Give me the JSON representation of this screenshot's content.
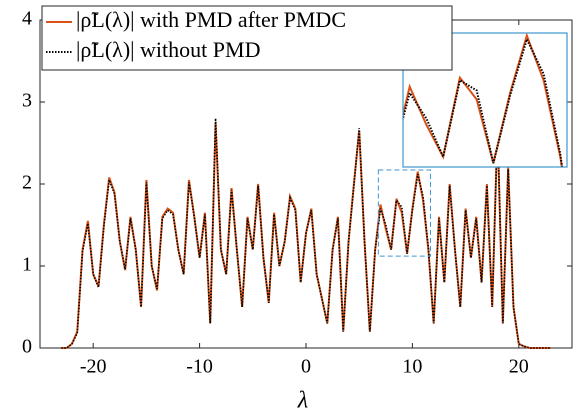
{
  "chart_data": {
    "type": "line",
    "x_label": "λ",
    "x": [
      -23,
      -22.5,
      -22,
      -21.5,
      -21,
      -20.5,
      -20,
      -19.5,
      -19,
      -18.5,
      -18,
      -17.5,
      -17,
      -16.5,
      -16,
      -15.5,
      -15,
      -14.5,
      -14,
      -13.5,
      -13,
      -12.5,
      -12,
      -11.5,
      -11,
      -10.5,
      -10,
      -9.5,
      -9,
      -8.5,
      -8,
      -7.5,
      -7,
      -6.5,
      -6,
      -5.5,
      -5,
      -4.5,
      -4,
      -3.5,
      -3,
      -2.5,
      -2,
      -1.5,
      -1,
      -0.5,
      0,
      0.5,
      1,
      1.5,
      2,
      2.5,
      3,
      3.5,
      4,
      4.5,
      5,
      5.5,
      6,
      6.5,
      7,
      7.5,
      8,
      8.5,
      9,
      9.5,
      10,
      10.5,
      11,
      11.5,
      12,
      12.5,
      13,
      13.5,
      14,
      14.5,
      15,
      15.5,
      16,
      16.5,
      17,
      17.5,
      18,
      18.5,
      19,
      19.5,
      20,
      20.5,
      21,
      22,
      23
    ],
    "series": [
      {
        "name": "|ρ̃L(λ)| with PMD after PMDC",
        "color": "#d95319",
        "style": "solid",
        "values": [
          0,
          0,
          0.05,
          0.2,
          1.2,
          1.55,
          0.9,
          0.75,
          1.5,
          2.08,
          1.9,
          1.3,
          0.95,
          1.6,
          1.2,
          0.5,
          2.05,
          1.0,
          0.7,
          1.6,
          1.7,
          1.65,
          1.2,
          0.9,
          2.05,
          1.6,
          1.1,
          1.65,
          0.3,
          2.75,
          1.2,
          0.9,
          1.95,
          1.2,
          0.5,
          1.6,
          1.2,
          2.0,
          1.1,
          0.55,
          1.65,
          1.0,
          1.3,
          1.85,
          1.7,
          0.8,
          1.4,
          1.7,
          0.9,
          0.6,
          0.3,
          1.2,
          1.6,
          0.2,
          1.3,
          2.0,
          2.65,
          1.3,
          0.2,
          1.2,
          1.75,
          1.45,
          1.2,
          1.82,
          1.65,
          1.15,
          1.7,
          2.15,
          1.8,
          1.2,
          0.3,
          1.6,
          0.8,
          2.0,
          1.2,
          0.5,
          1.7,
          1.1,
          1.6,
          0.8,
          2.0,
          0.5,
          2.7,
          0.3,
          2.2,
          0.5,
          0.05,
          0.02,
          0,
          0,
          0
        ]
      },
      {
        "name": "|ρ̃L(λ)| without PMD",
        "color": "#000000",
        "style": "dotted",
        "values": [
          0,
          0,
          0.05,
          0.18,
          1.18,
          1.52,
          0.9,
          0.74,
          1.48,
          2.05,
          1.88,
          1.3,
          0.96,
          1.58,
          1.2,
          0.5,
          2.02,
          1.0,
          0.72,
          1.58,
          1.68,
          1.63,
          1.2,
          0.9,
          2.02,
          1.6,
          1.1,
          1.63,
          0.3,
          2.8,
          1.2,
          0.9,
          1.93,
          1.2,
          0.5,
          1.58,
          1.2,
          1.98,
          1.1,
          0.55,
          1.63,
          1.0,
          1.3,
          1.83,
          1.68,
          0.8,
          1.4,
          1.68,
          0.9,
          0.6,
          0.3,
          1.2,
          1.58,
          0.2,
          1.3,
          1.98,
          2.68,
          1.3,
          0.2,
          1.2,
          1.7,
          1.5,
          1.2,
          1.8,
          1.72,
          1.15,
          1.68,
          2.12,
          1.85,
          1.22,
          0.3,
          1.58,
          0.8,
          1.98,
          1.2,
          0.5,
          1.68,
          1.1,
          1.58,
          0.8,
          1.98,
          0.5,
          2.72,
          0.3,
          2.18,
          0.5,
          0.05,
          0.02,
          0,
          0,
          0
        ]
      }
    ],
    "xlim": [
      -25,
      25
    ],
    "ylim": [
      0,
      4
    ],
    "xticks": [
      -20,
      -10,
      0,
      10,
      20
    ],
    "yticks": [
      0,
      1,
      2,
      3,
      4
    ],
    "legend": "upper left",
    "inset": {
      "xlim": [
        6.8,
        11.7
      ],
      "ylim": [
        1.12,
        2.17
      ],
      "color": "#3c96cf"
    }
  }
}
